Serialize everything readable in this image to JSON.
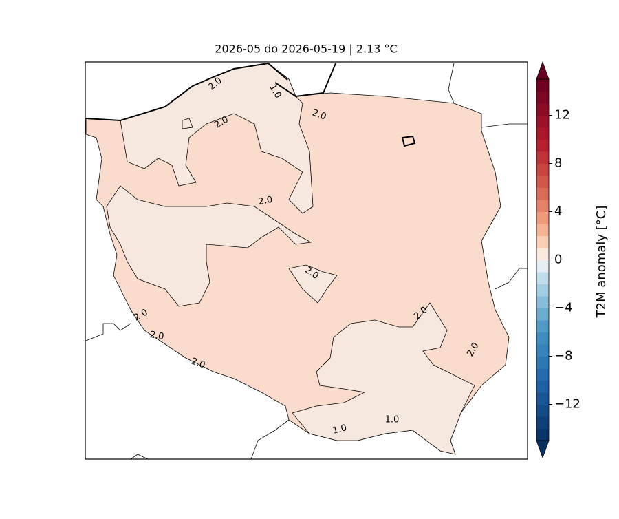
{
  "title": "2026-05 do 2026-05-19 | 2.13 °C",
  "colorbar": {
    "label": "T2M anomaly [°C]",
    "lim": [
      -15,
      15
    ],
    "step": 1,
    "extend": "both",
    "ticks": [
      12,
      8,
      4,
      0,
      {
        "value": -4,
        "label": "−4"
      },
      {
        "value": -8,
        "label": "−8"
      },
      {
        "value": -12,
        "label": "−12"
      }
    ]
  },
  "contour_labels": [
    "2.0",
    "2.0",
    "2.0",
    "2.0",
    "2.0",
    "2.0",
    "2.0",
    "2.0",
    "2.0",
    "2.0",
    "1.0",
    "1.0",
    "1.0"
  ]
}
